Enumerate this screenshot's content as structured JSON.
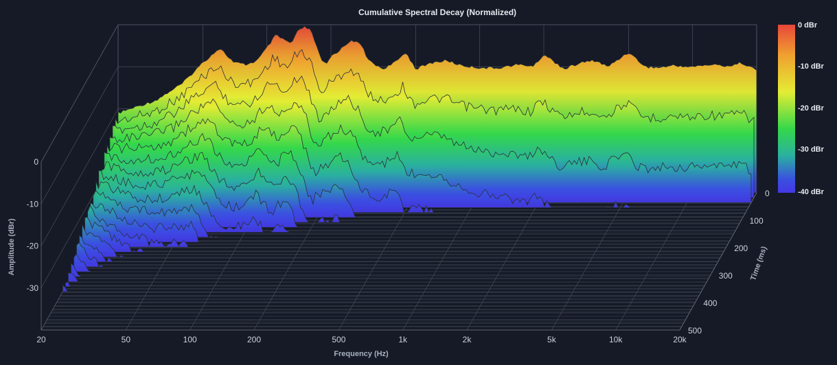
{
  "chart_data": {
    "type": "waterfall-3d",
    "title": "Cumulative Spectral Decay (Normalized)",
    "xlabel": "Frequency (Hz)",
    "ylabel": "Amplitude (dBr)",
    "zlabel": "Time (ms)",
    "x_scale": "log",
    "xlim": [
      20,
      20000
    ],
    "x_ticks": [
      {
        "value": 20,
        "label": "20"
      },
      {
        "value": 50,
        "label": "50"
      },
      {
        "value": 100,
        "label": "100"
      },
      {
        "value": 200,
        "label": "200"
      },
      {
        "value": 500,
        "label": "500"
      },
      {
        "value": 1000,
        "label": "1k"
      },
      {
        "value": 2000,
        "label": "2k"
      },
      {
        "value": 5000,
        "label": "5k"
      },
      {
        "value": 10000,
        "label": "10k"
      },
      {
        "value": 20000,
        "label": "20k"
      }
    ],
    "ylim": [
      -40,
      0
    ],
    "y_ticks": [
      {
        "value": 0,
        "label": "0"
      },
      {
        "value": -10,
        "label": "-10"
      },
      {
        "value": -20,
        "label": "-20"
      },
      {
        "value": -30,
        "label": "-30"
      }
    ],
    "zlim": [
      0,
      500
    ],
    "z_ticks": [
      {
        "value": 0,
        "label": "0"
      },
      {
        "value": 100,
        "label": "100"
      },
      {
        "value": 200,
        "label": "200"
      },
      {
        "value": 300,
        "label": "300"
      },
      {
        "value": 400,
        "label": "400"
      },
      {
        "value": 500,
        "label": "500"
      }
    ],
    "colorbar": {
      "range": [
        -40,
        0
      ],
      "labels": [
        "0 dBr",
        "-10 dBr",
        "-20 dBr",
        "-30 dBr",
        "-40 dBr"
      ],
      "colors": [
        "#e8463a",
        "#f0a030",
        "#e4ec34",
        "#34d84a",
        "#2ab0a0",
        "#3a50e0",
        "#4438e6"
      ]
    },
    "initial_response": {
      "frequencies": [
        20,
        30,
        40,
        50,
        60,
        70,
        80,
        90,
        100,
        110,
        120,
        130,
        140,
        150,
        160,
        170,
        180,
        190,
        200,
        220,
        250,
        280,
        300,
        350,
        400,
        450,
        500,
        600,
        700,
        800,
        900,
        1000,
        1200,
        1500,
        1800,
        2000,
        2200,
        2500,
        3000,
        3500,
        4000,
        5000,
        6000,
        7000,
        8000,
        10000,
        12000,
        15000,
        17000,
        20000
      ],
      "dbr": [
        -21,
        -18,
        -14,
        -9,
        -5.5,
        -9,
        -9.5,
        -8.5,
        -5.5,
        -2.5,
        -3.5,
        -4.5,
        -1.5,
        -0.5,
        -1.2,
        -4.5,
        -8.5,
        -9.5,
        -7.5,
        -6,
        -3.5,
        -5,
        -8.5,
        -10.5,
        -9,
        -6.5,
        -10.5,
        -9,
        -8.5,
        -9.5,
        -10,
        -10.2,
        -10.3,
        -9.5,
        -9.8,
        -7,
        -8.5,
        -10.5,
        -9,
        -8.5,
        -10,
        -6.5,
        -10,
        -10.2,
        -9.7,
        -10,
        -9.5,
        -9.8,
        -9,
        -10.8
      ]
    },
    "decay_slices": 28,
    "slice_interval_ms": 18
  }
}
